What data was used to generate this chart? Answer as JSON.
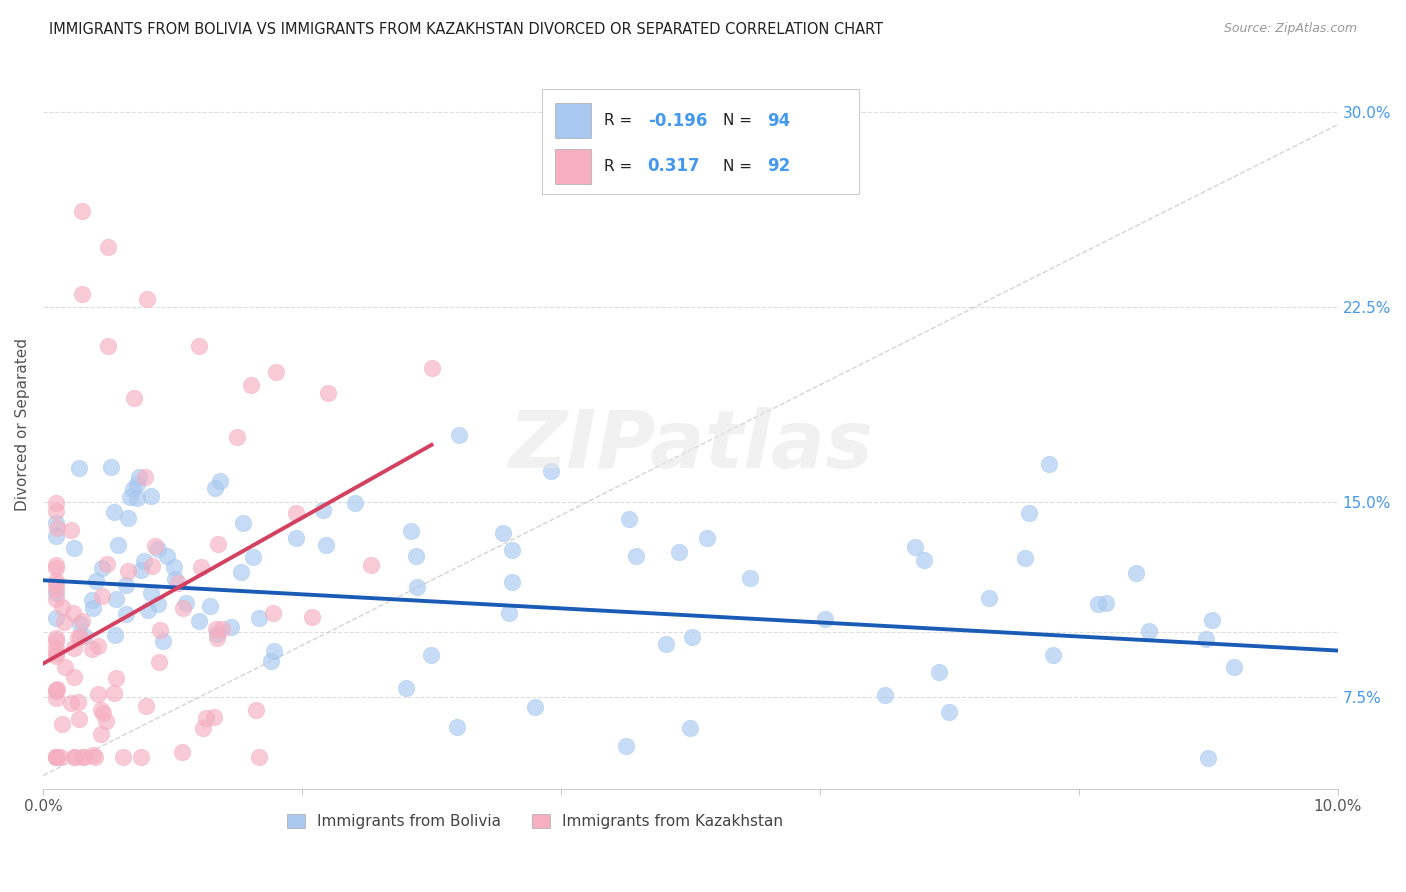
{
  "title": "IMMIGRANTS FROM BOLIVIA VS IMMIGRANTS FROM KAZAKHSTAN DIVORCED OR SEPARATED CORRELATION CHART",
  "source": "Source: ZipAtlas.com",
  "ylabel": "Divorced or Separated",
  "xlim": [
    0.0,
    0.1
  ],
  "ylim": [
    0.04,
    0.32
  ],
  "bolivia_color": "#a8c8f0",
  "bolivia_edge_color": "#a8c8f0",
  "kazakhstan_color": "#f5afc0",
  "kazakhstan_edge_color": "#f5afc0",
  "bolivia_line_color": "#1a5cb5",
  "kazakhstan_line_color": "#d44060",
  "diag_line_color": "#cccccc",
  "grid_color": "#dddddd",
  "background_color": "#ffffff",
  "y_tick_vals": [
    0.075,
    0.1,
    0.15,
    0.225,
    0.3
  ],
  "y_tick_labels_right": [
    "7.5%",
    "",
    "15.0%",
    "22.5%",
    "30.0%"
  ],
  "bolivia_R": -0.196,
  "bolivia_N": 94,
  "kazakhstan_R": 0.317,
  "kazakhstan_N": 92,
  "legend_labels": [
    "Immigrants from Bolivia",
    "Immigrants from Kazakhstan"
  ],
  "watermark": "ZIPatlas",
  "bolivia_trend": [
    0.0,
    0.1,
    0.12,
    0.093
  ],
  "kazakhstan_trend": [
    0.0,
    0.03,
    0.088,
    0.172
  ]
}
